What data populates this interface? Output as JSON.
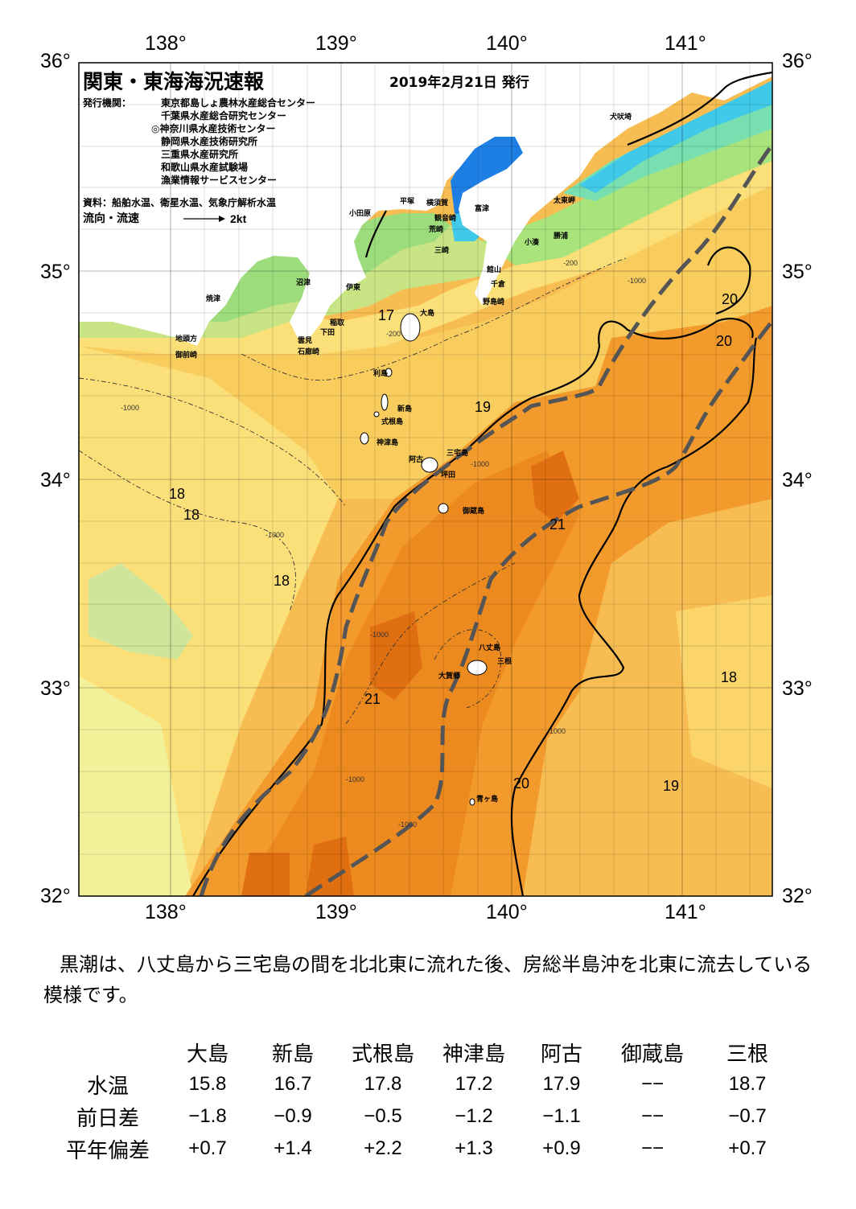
{
  "header": {
    "title": "関東・東海海況速報",
    "date": "2019年2月21日 発行",
    "issuer_label": "発行機関：",
    "issuers": [
      "東京都島しょ農林水産総合センター",
      "千葉県水産総合研究センター",
      "◎神奈川県水産技術センター",
      "静岡県水産技術研究所",
      "三重県水産研究所",
      "和歌山県水産試験場",
      "漁業情報サービスセンター"
    ],
    "source": "資料：船舶水温、衛星水温、気象庁解析水温",
    "flow_label": "流向・流速",
    "flow_scale": "2kt"
  },
  "axes": {
    "lon_ticks": [
      "138°",
      "139°",
      "140°",
      "141°"
    ],
    "lat_ticks": [
      "36°",
      "35°",
      "34°",
      "33°",
      "32°"
    ]
  },
  "map": {
    "place_names": [
      "犬吠埼",
      "太東岬",
      "勝浦",
      "小湊",
      "富津",
      "横須賀",
      "観音崎",
      "荒崎",
      "三崎",
      "平塚",
      "小田原",
      "館山",
      "千倉",
      "野島崎",
      "沼津",
      "伊東",
      "稲取",
      "下田",
      "雲見",
      "石廊崎",
      "焼津",
      "地頭方",
      "御前崎",
      "大島",
      "利島",
      "新島",
      "式根島",
      "神津島",
      "三宅島",
      "阿古",
      "坪田",
      "御蔵島",
      "八丈島",
      "三根",
      "大賀郷",
      "青ヶ島"
    ],
    "temperature_labels": [
      "17",
      "19",
      "20",
      "20",
      "18",
      "18",
      "18",
      "21",
      "21",
      "18",
      "20",
      "19"
    ],
    "depth_labels": [
      "-200",
      "-1000"
    ]
  },
  "summary": "黒潮は、八丈島から三宅島の間を北北東に流れた後、房総半島沖を北東に流去している模様です。",
  "table": {
    "columns": [
      "大島",
      "新島",
      "式根島",
      "神津島",
      "阿古",
      "御蔵島",
      "三根"
    ],
    "rows": [
      {
        "label": "水温",
        "values": [
          "15.8",
          "16.7",
          "17.8",
          "17.2",
          "17.9",
          "−−",
          "18.7"
        ]
      },
      {
        "label": "前日差",
        "values": [
          "−1.8",
          "−0.9",
          "−0.5",
          "−1.2",
          "−1.1",
          "−−",
          "−0.7"
        ]
      },
      {
        "label": "平年偏差",
        "values": [
          "+0.7",
          "+1.4",
          "+2.2",
          "+1.3",
          "+0.9",
          "−−",
          "+0.7"
        ]
      }
    ]
  },
  "colors": {
    "warm_core": "#e8730f",
    "warm": "#f39a2c",
    "mid": "#f7bd52",
    "cool": "#fbe07a",
    "pale": "#f3f09a",
    "coastal_green": "#a3df7a",
    "green": "#6fd56e",
    "cyan": "#3ac8e8",
    "blue": "#1d7fe4",
    "land": "#ffffff",
    "kuroshio_axis": "#555555"
  }
}
